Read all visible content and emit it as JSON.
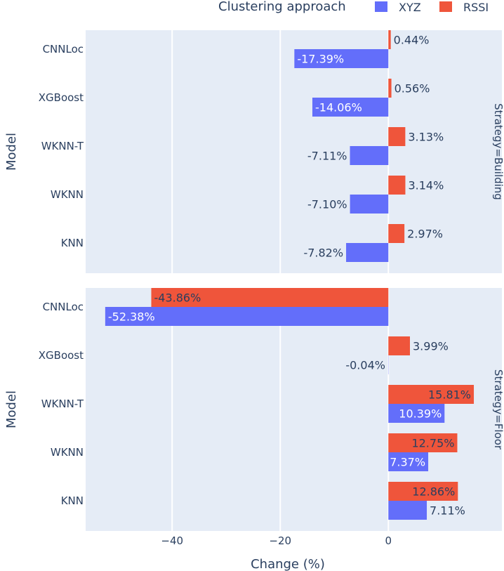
{
  "chart_data": {
    "type": "bar",
    "orientation": "horizontal",
    "xlabel": "Change (%)",
    "ylabel": "Model",
    "xlim": [
      -56,
      21
    ],
    "x_ticks": [
      -40,
      -20,
      0
    ],
    "x_tick_labels": [
      "−40",
      "−20",
      "0"
    ],
    "legend": {
      "title": "Clustering approach",
      "placement": "top-right",
      "entries": [
        {
          "name": "XYZ",
          "color": "#636efa"
        },
        {
          "name": "RSSI",
          "color": "#ef553b"
        }
      ]
    },
    "categories": [
      "CNNLoc",
      "XGBoost",
      "WKNN-T",
      "WKNN",
      "KNN"
    ],
    "facets": [
      {
        "label": "Strategy=Building",
        "series": [
          {
            "name": "RSSI",
            "values": [
              0.44,
              0.56,
              3.13,
              3.14,
              2.97
            ],
            "labels": [
              "0.44%",
              "0.56%",
              "3.13%",
              "3.14%",
              "2.97%"
            ]
          },
          {
            "name": "XYZ",
            "values": [
              -17.39,
              -14.06,
              -7.11,
              -7.1,
              -7.82
            ],
            "labels": [
              "-17.39%",
              "-14.06%",
              "-7.11%",
              "-7.10%",
              "-7.82%"
            ]
          }
        ]
      },
      {
        "label": "Strategy=Floor",
        "series": [
          {
            "name": "RSSI",
            "values": [
              -43.86,
              3.99,
              15.81,
              12.75,
              12.86
            ],
            "labels": [
              "-43.86%",
              "3.99%",
              "15.81%",
              "12.75%",
              "12.86%"
            ]
          },
          {
            "name": "XYZ",
            "values": [
              -52.38,
              -0.04,
              10.39,
              7.37,
              7.11
            ],
            "labels": [
              "-52.38%",
              "-0.04%",
              "10.39%",
              "7.37%",
              "7.11%"
            ]
          }
        ]
      }
    ]
  }
}
